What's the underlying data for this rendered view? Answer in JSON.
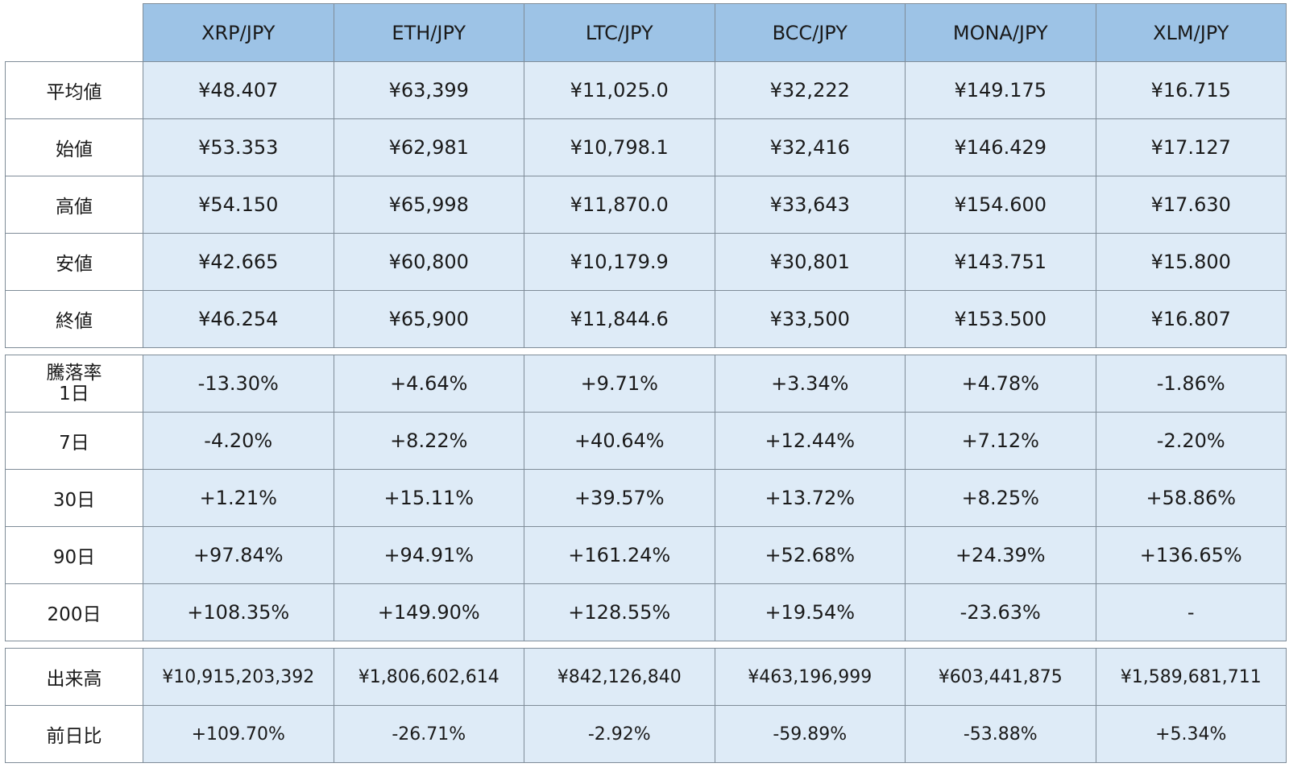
{
  "chart_data": {
    "type": "table",
    "columns": [
      "XRP/JPY",
      "ETH/JPY",
      "LTC/JPY",
      "BCC/JPY",
      "MONA/JPY",
      "XLM/JPY"
    ],
    "price_rows": [
      {
        "label": "平均値",
        "values": [
          "¥48.407",
          "¥63,399",
          "¥11,025.0",
          "¥32,222",
          "¥149.175",
          "¥16.715"
        ]
      },
      {
        "label": "始値",
        "values": [
          "¥53.353",
          "¥62,981",
          "¥10,798.1",
          "¥32,416",
          "¥146.429",
          "¥17.127"
        ]
      },
      {
        "label": "高値",
        "values": [
          "¥54.150",
          "¥65,998",
          "¥11,870.0",
          "¥33,643",
          "¥154.600",
          "¥17.630"
        ]
      },
      {
        "label": "安値",
        "values": [
          "¥42.665",
          "¥60,800",
          "¥10,179.9",
          "¥30,801",
          "¥143.751",
          "¥15.800"
        ]
      },
      {
        "label": "終値",
        "values": [
          "¥46.254",
          "¥65,900",
          "¥11,844.6",
          "¥33,500",
          "¥153.500",
          "¥16.807"
        ]
      }
    ],
    "change_rows": [
      {
        "label": "騰落率",
        "label2": "1日",
        "values": [
          "-13.30%",
          "+4.64%",
          "+9.71%",
          "+3.34%",
          "+4.78%",
          "-1.86%"
        ]
      },
      {
        "label": "7日",
        "values": [
          "-4.20%",
          "+8.22%",
          "+40.64%",
          "+12.44%",
          "+7.12%",
          "-2.20%"
        ]
      },
      {
        "label": "30日",
        "values": [
          "+1.21%",
          "+15.11%",
          "+39.57%",
          "+13.72%",
          "+8.25%",
          "+58.86%"
        ]
      },
      {
        "label": "90日",
        "values": [
          "+97.84%",
          "+94.91%",
          "+161.24%",
          "+52.68%",
          "+24.39%",
          "+136.65%"
        ]
      },
      {
        "label": "200日",
        "values": [
          "+108.35%",
          "+149.90%",
          "+128.55%",
          "+19.54%",
          "-23.63%",
          "-"
        ]
      }
    ],
    "volume_rows": [
      {
        "label": "出来高",
        "values": [
          "¥10,915,203,392",
          "¥1,806,602,614",
          "¥842,126,840",
          "¥463,196,999",
          "¥603,441,875",
          "¥1,589,681,711"
        ]
      },
      {
        "label": "前日比",
        "values": [
          "+109.70%",
          "-26.71%",
          "-2.92%",
          "-59.89%",
          "-53.88%",
          "+5.34%"
        ]
      }
    ]
  },
  "colors": {
    "header_bg": "#9dc3e6",
    "cell_bg": "#deebf7",
    "border": "#7f8c98"
  }
}
